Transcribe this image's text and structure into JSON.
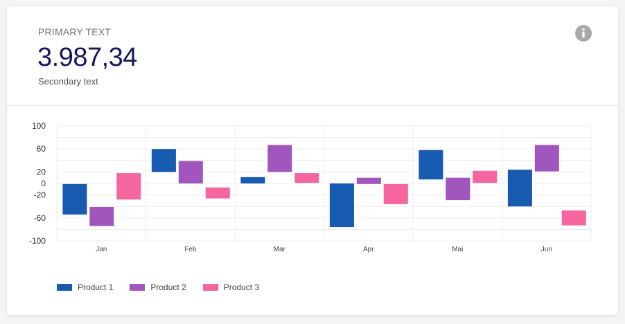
{
  "header": {
    "primary_label": "PRIMARY TEXT",
    "primary_value": "3.987,34",
    "secondary_text": "Secondary text",
    "info_icon": "info-icon"
  },
  "chart_data": {
    "type": "bar",
    "subtype": "floating-range",
    "categories": [
      "Jan",
      "Feb",
      "Mar",
      "Apr",
      "Mai",
      "Jun"
    ],
    "ylim": [
      -100,
      100
    ],
    "yticks": [
      100,
      60,
      20,
      0,
      -20,
      -60,
      -100
    ],
    "grid": true,
    "legend_position": "bottom-left",
    "series": [
      {
        "name": "Product 1",
        "color": "#175ab0",
        "ranges": [
          [
            -54,
            -1
          ],
          [
            20,
            60
          ],
          [
            0,
            11
          ],
          [
            -76,
            0
          ],
          [
            7,
            58
          ],
          [
            -40,
            24
          ]
        ]
      },
      {
        "name": "Product 2",
        "color": "#a056bc",
        "ranges": [
          [
            -74,
            -41
          ],
          [
            0,
            39
          ],
          [
            20,
            67
          ],
          [
            -1,
            10
          ],
          [
            -29,
            10
          ],
          [
            21,
            67
          ]
        ]
      },
      {
        "name": "Product 3",
        "color": "#f566a0",
        "ranges": [
          [
            -28,
            18
          ],
          [
            -26,
            -7
          ],
          [
            1,
            18
          ],
          [
            -36,
            -1
          ],
          [
            1,
            22
          ],
          [
            -73,
            -47
          ]
        ]
      }
    ]
  }
}
